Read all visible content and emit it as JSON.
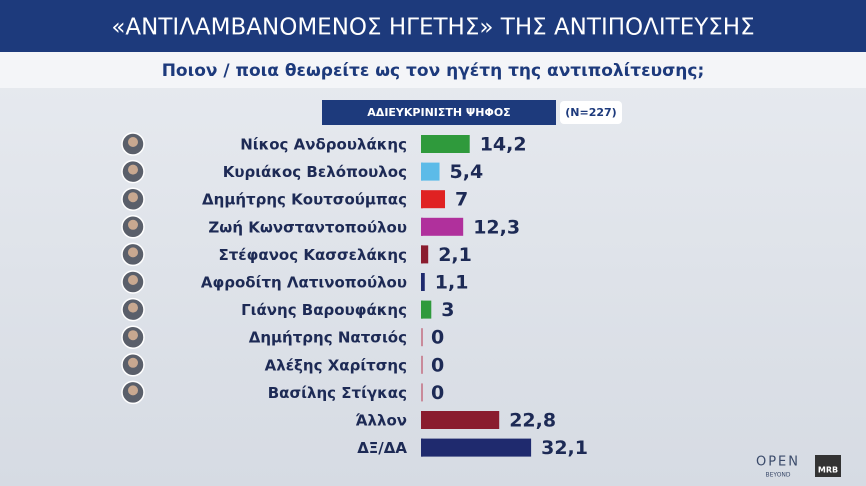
{
  "chart_data": {
    "type": "bar",
    "orientation": "horizontal",
    "title": "«ΑΝΤΙΛΑΜΒΑΝΟΜΕΝΟΣ ΗΓΕΤΗΣ» ΤΗΣ ΑΝΤΙΠΟΛΙΤΕΥΣΗΣ",
    "subtitle": "Ποιον / ποια θεωρείτε ως τον ηγέτη της αντιπολίτευσης;",
    "header": "ΑΔΙΕΥΚΡΙΝΙΣΤΗ ΨΗΦΟΣ",
    "sample": "(N=227)",
    "categories": [
      "Νίκος Ανδρουλάκης",
      "Κυριάκος Βελόπουλος",
      "Δημήτρης Κουτσούμπας",
      "Ζωή Κωνσταντοπούλου",
      "Στέφανος Κασσελάκης",
      "Αφροδίτη Λατινοπούλου",
      "Γιάνης Βαρουφάκης",
      "Δημήτρης Νατσιός",
      "Αλέξης Χαρίτσης",
      "Βασίλης Στίγκας",
      "Άλλον",
      "ΔΞ/ΔΑ"
    ],
    "values": [
      14.2,
      5.4,
      7,
      12.3,
      2.1,
      1.1,
      3,
      0,
      0,
      0,
      22.8,
      32.1
    ],
    "value_labels": [
      "14,2",
      "5,4",
      "7",
      "12,3",
      "2,1",
      "1,1",
      "3",
      "0",
      "0",
      "0",
      "22,8",
      "32,1"
    ],
    "colors": [
      "#2f9a3c",
      "#5cbbe8",
      "#e02222",
      "#b0309c",
      "#8a1c2e",
      "#1f2a6e",
      "#2f9a3c",
      "#c98a9a",
      "#c98a9a",
      "#c98a9a",
      "#8a1c2e",
      "#1f2a6e"
    ],
    "logo": "OPEN",
    "logo_sub": "BEYOND",
    "logo2": "MRB"
  }
}
